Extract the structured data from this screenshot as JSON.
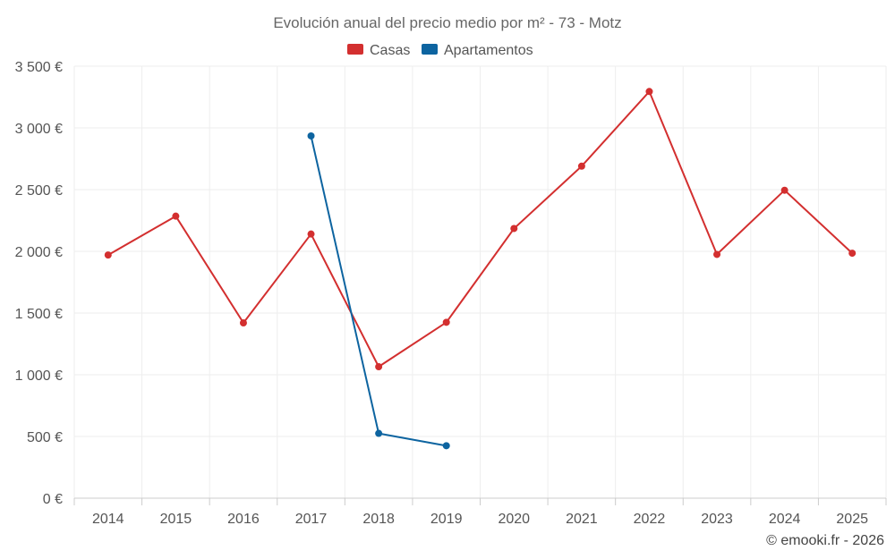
{
  "chart_data": {
    "type": "line",
    "title": "Evolución anual del precio medio por m² - 73 - Motz",
    "categories": [
      "2014",
      "2015",
      "2016",
      "2017",
      "2018",
      "2019",
      "2020",
      "2021",
      "2022",
      "2023",
      "2024",
      "2025"
    ],
    "ylim": [
      0,
      3500
    ],
    "y_ticks": [
      0,
      500,
      1000,
      1500,
      2000,
      2500,
      3000,
      3500
    ],
    "y_tick_labels": [
      "0 €",
      "500 €",
      "1 000 €",
      "1 500 €",
      "2 000 €",
      "2 500 €",
      "3 000 €",
      "3 500 €"
    ],
    "grid": true,
    "legend_position": "top-center",
    "series": [
      {
        "name": "Casas",
        "color": "#d32f2f",
        "values": [
          1970,
          2285,
          1420,
          2140,
          1065,
          1425,
          2185,
          2690,
          3295,
          1975,
          2495,
          1985
        ]
      },
      {
        "name": "Apartamentos",
        "color": "#0d64a0",
        "values": [
          null,
          null,
          null,
          2935,
          525,
          425,
          null,
          null,
          null,
          null,
          null,
          null
        ]
      }
    ],
    "credit": "© emooki.fr - 2026"
  }
}
